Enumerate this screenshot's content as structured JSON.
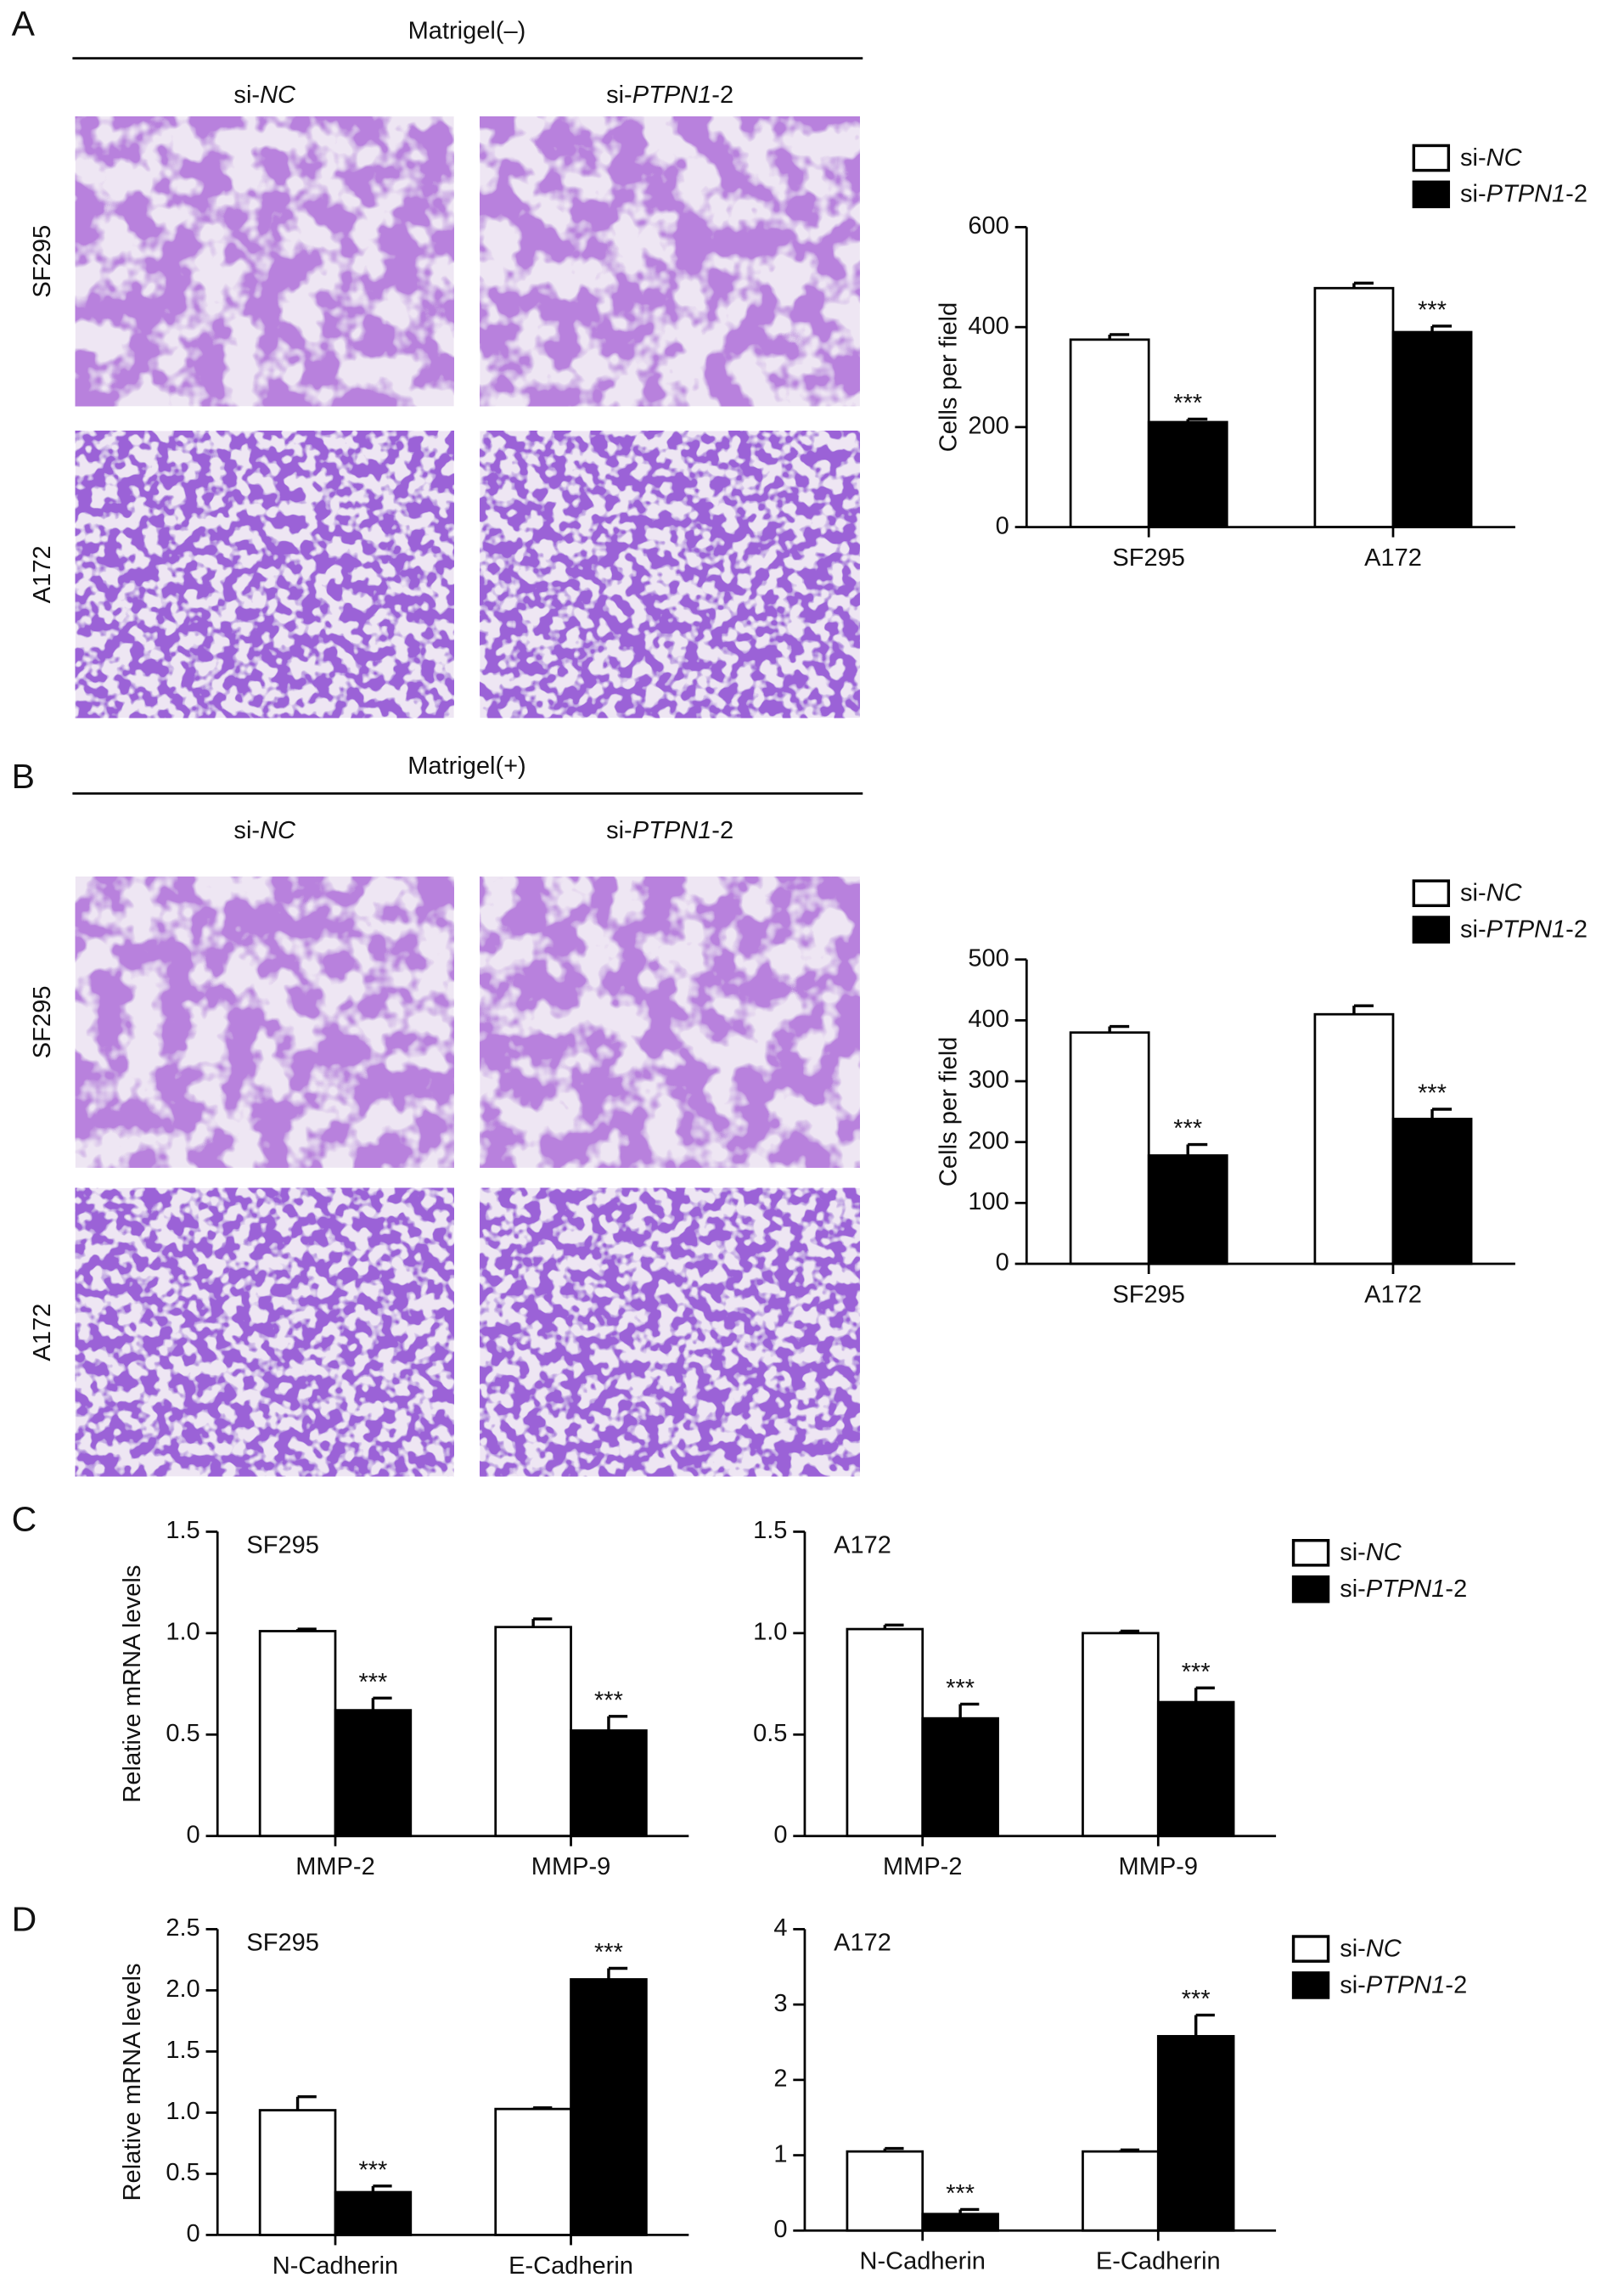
{
  "panels": [
    {
      "label": "A",
      "header": "Matrigel(–)",
      "columns": [
        "si-NC",
        "si-PTPN1-2"
      ],
      "rows": [
        "SF295",
        "A172"
      ]
    },
    {
      "label": "B",
      "header": "Matrigel(+)",
      "columns": [
        "si-NC",
        "si-PTPN1-2"
      ],
      "rows": [
        "SF295",
        "A172"
      ]
    },
    {
      "label": "C"
    },
    {
      "label": "D"
    }
  ],
  "chart_data": [
    {
      "type": "bar",
      "y_label": "Cells per field",
      "categories": [
        "SF295",
        "A172"
      ],
      "series": [
        {
          "name": "si-NC",
          "color": "#ffffff",
          "values": [
            375,
            478
          ],
          "errors": [
            10,
            10
          ]
        },
        {
          "name": "si-PTPN1-2",
          "color": "#000000",
          "values": [
            210,
            390
          ],
          "errors": [
            6,
            12
          ],
          "significance": [
            "***",
            "***"
          ]
        }
      ],
      "ylim": [
        0,
        600
      ],
      "yticks": [
        0,
        200,
        400,
        600
      ],
      "legend": "top-right"
    },
    {
      "type": "bar",
      "y_label": "Cells per field",
      "categories": [
        "SF295",
        "A172"
      ],
      "series": [
        {
          "name": "si-NC",
          "color": "#ffffff",
          "values": [
            380,
            410
          ],
          "errors": [
            10,
            14
          ]
        },
        {
          "name": "si-PTPN1-2",
          "color": "#000000",
          "values": [
            178,
            238
          ],
          "errors": [
            18,
            16
          ],
          "significance": [
            "***",
            "***"
          ]
        }
      ],
      "ylim": [
        0,
        500
      ],
      "yticks": [
        0,
        100,
        200,
        300,
        400,
        500
      ],
      "legend": "top-right"
    },
    {
      "type": "bar",
      "subtitle": "SF295",
      "y_label": "Relative mRNA levels",
      "categories": [
        "MMP-2",
        "MMP-9"
      ],
      "series": [
        {
          "name": "si-NC",
          "color": "#ffffff",
          "values": [
            1.01,
            1.03
          ],
          "errors": [
            0.01,
            0.04
          ]
        },
        {
          "name": "si-PTPN1-2",
          "color": "#000000",
          "values": [
            0.62,
            0.52
          ],
          "errors": [
            0.06,
            0.07
          ],
          "significance": [
            "***",
            "***"
          ]
        }
      ],
      "ylim": [
        0,
        1.5
      ],
      "yticks": [
        0,
        0.5,
        {
          "value": 1,
          "label": "1.0"
        },
        1.5
      ]
    },
    {
      "type": "bar",
      "subtitle": "A172",
      "categories": [
        "MMP-2",
        "MMP-9"
      ],
      "series": [
        {
          "name": "si-NC",
          "color": "#ffffff",
          "values": [
            1.02,
            1.0
          ],
          "errors": [
            0.02,
            0.01
          ]
        },
        {
          "name": "si-PTPN1-2",
          "color": "#000000",
          "values": [
            0.58,
            0.66
          ],
          "errors": [
            0.07,
            0.07
          ],
          "significance": [
            "***",
            "***"
          ]
        }
      ],
      "ylim": [
        0,
        1.5
      ],
      "yticks": [
        0,
        0.5,
        {
          "value": 1,
          "label": "1.0"
        },
        1.5
      ],
      "legend": "right"
    },
    {
      "type": "bar",
      "subtitle": "SF295",
      "y_label": "Relative mRNA levels",
      "categories": [
        "N-Cadherin",
        "E-Cadherin"
      ],
      "series": [
        {
          "name": "si-NC",
          "color": "#ffffff",
          "values": [
            1.02,
            1.03
          ],
          "errors": [
            0.11,
            0.01
          ]
        },
        {
          "name": "si-PTPN1-2",
          "color": "#000000",
          "values": [
            0.35,
            2.09
          ],
          "errors": [
            0.05,
            0.09
          ],
          "significance": [
            "***",
            "***"
          ]
        }
      ],
      "ylim": [
        0,
        2.5
      ],
      "yticks": [
        0,
        0.5,
        {
          "value": 1,
          "label": "1.0"
        },
        1.5,
        {
          "value": 2,
          "label": "2.0"
        },
        2.5
      ]
    },
    {
      "type": "bar",
      "subtitle": "A172",
      "categories": [
        "N-Cadherin",
        "E-Cadherin"
      ],
      "series": [
        {
          "name": "si-NC",
          "color": "#ffffff",
          "values": [
            1.05,
            1.05
          ],
          "errors": [
            0.04,
            0.02
          ]
        },
        {
          "name": "si-PTPN1-2",
          "color": "#000000",
          "values": [
            0.22,
            2.58
          ],
          "errors": [
            0.06,
            0.28
          ],
          "significance": [
            "***",
            "***"
          ]
        }
      ],
      "ylim": [
        0,
        4
      ],
      "yticks": [
        0,
        1,
        2,
        3,
        4
      ],
      "legend": "right"
    }
  ]
}
